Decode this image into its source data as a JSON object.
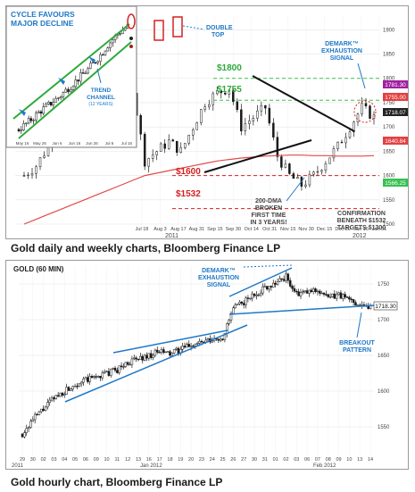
{
  "colors": {
    "candle": "#1a1a1a",
    "trend_green": "#2eaa3a",
    "resistance_green": "#3cbf4a",
    "support_red": "#d62020",
    "annotation_blue": "#1f78c8",
    "dma_red": "#e24a4a",
    "trendline_black": "#111111",
    "label_bg_red": "#e34040",
    "label_bg_purple": "#a020a0",
    "label_bg_green": "#36c050"
  },
  "top_chart": {
    "inset_title_line1": "CYCLE FAVOURS",
    "inset_title_line2": "MAJOR DECLINE",
    "inset_channel_label1": "TREND",
    "inset_channel_label2": "CHANNEL",
    "inset_channel_label3": "(12 YEARS)",
    "double_top_line1": "DOUBLE",
    "double_top_line2": "TOP",
    "demark_line1": "DEMARK™",
    "demark_line2": "EXHAUSTION",
    "demark_line3": "SIGNAL",
    "level_1800": "$1800",
    "level_1755": "$1755",
    "level_1600": "$1600",
    "level_1532": "$1532",
    "dma_line1": "200-DMA",
    "dma_line2": "BROKEN",
    "dma_line3": "FIRST TIME",
    "dma_line4": "IN 3 YEARS!",
    "confirm_line1": "CONFIRMATION",
    "confirm_line2": "BENEATH $1532",
    "confirm_line3": "TARGETS $1300",
    "price_tag_red": "1755.00",
    "price_tag_purple": "1781.30",
    "price_tag_black": "1718.07",
    "price_tag_red2": "1640.84",
    "price_tag_green": "1566.25",
    "inset_x_ticks": [
      "May 16",
      "May 26",
      "Jun 6",
      "Jun 16",
      "Jun 26",
      "Jul 6",
      "Jul 15"
    ],
    "year_label": "2011",
    "year_label_right": "2012"
  },
  "bottom_chart": {
    "panel_title": "GOLD (60 MIN)",
    "demark_line1": "DEMARK™",
    "demark_line2": "EXHAUSTION",
    "demark_line3": "SIGNAL",
    "breakout_line1": "BREAKOUT",
    "breakout_line2": "PATTERN",
    "last_price_tag": "1718.30",
    "month_label_left": "Jan 2012",
    "month_label_right": "Feb 2012",
    "edge_label_left": "2011"
  },
  "chart_data": [
    {
      "type": "line",
      "title": "",
      "ylim": [
        1500,
        1930
      ],
      "y_ticks": [
        1500,
        1550,
        1600,
        1650,
        1700,
        1750,
        1800,
        1850,
        1900
      ],
      "x_ticks": [
        "Jul 18",
        "Aug 3",
        "Aug 17",
        "Aug 31",
        "Sep 15",
        "Sep 30",
        "Oct 14",
        "Oct 31",
        "Nov 15",
        "Nov 30",
        "Dec 15",
        "Dec 30",
        "Jan 16",
        "Jan 31"
      ],
      "support_levels": [
        1800,
        1755,
        1600,
        1532
      ],
      "series": [
        {
          "x": [
            "Jul 18",
            "Jul 25",
            "Aug 1",
            "Aug 8",
            "Aug 15",
            "Aug 22",
            "Aug 29",
            "Sep 5",
            "Sep 12",
            "Sep 19",
            "Sep 26",
            "Oct 3",
            "Oct 10",
            "Oct 17",
            "Oct 24",
            "Oct 31",
            "Nov 7",
            "Nov 14",
            "Nov 21",
            "Nov 28",
            "Dec 5",
            "Dec 12",
            "Dec 19",
            "Dec 26",
            "Jan 2",
            "Jan 9",
            "Jan 16",
            "Jan 23",
            "Jan 30",
            "Feb 6"
          ],
          "values": [
            1600,
            1620,
            1660,
            1760,
            1820,
            1890,
            1820,
            1880,
            1800,
            1780,
            1630,
            1650,
            1670,
            1650,
            1700,
            1750,
            1770,
            1780,
            1700,
            1720,
            1740,
            1640,
            1600,
            1580,
            1600,
            1630,
            1660,
            1700,
            1740,
            1720
          ]
        },
        {
          "values": [
            1500,
            1510,
            1520,
            1530,
            1540,
            1550,
            1560,
            1570,
            1580,
            1590,
            1600,
            1605,
            1610,
            1615,
            1620,
            1625,
            1630,
            1633,
            1636,
            1638,
            1640,
            1641,
            1642,
            1642,
            1641,
            1641,
            1640,
            1640,
            1640,
            1641
          ]
        }
      ]
    },
    {
      "type": "line",
      "title": "",
      "ylim": [
        1510,
        1775
      ],
      "y_ticks": [
        1550,
        1600,
        1650,
        1700,
        1750
      ],
      "x_ticks": [
        "29",
        "30",
        "02",
        "03",
        "04",
        "05",
        "06",
        "09",
        "10",
        "11",
        "12",
        "13",
        "16",
        "17",
        "18",
        "19",
        "20",
        "23",
        "24",
        "25",
        "26",
        "27",
        "30",
        "31",
        "01",
        "02",
        "03",
        "06",
        "07",
        "08",
        "09",
        "10",
        "13",
        "14"
      ],
      "series": [
        {
          "values": [
            1540,
            1560,
            1575,
            1590,
            1600,
            1610,
            1615,
            1620,
            1625,
            1630,
            1640,
            1645,
            1650,
            1655,
            1652,
            1658,
            1665,
            1668,
            1670,
            1675,
            1715,
            1725,
            1735,
            1745,
            1752,
            1760,
            1735,
            1738,
            1742,
            1730,
            1735,
            1728,
            1722,
            1718
          ]
        }
      ]
    }
  ]
}
